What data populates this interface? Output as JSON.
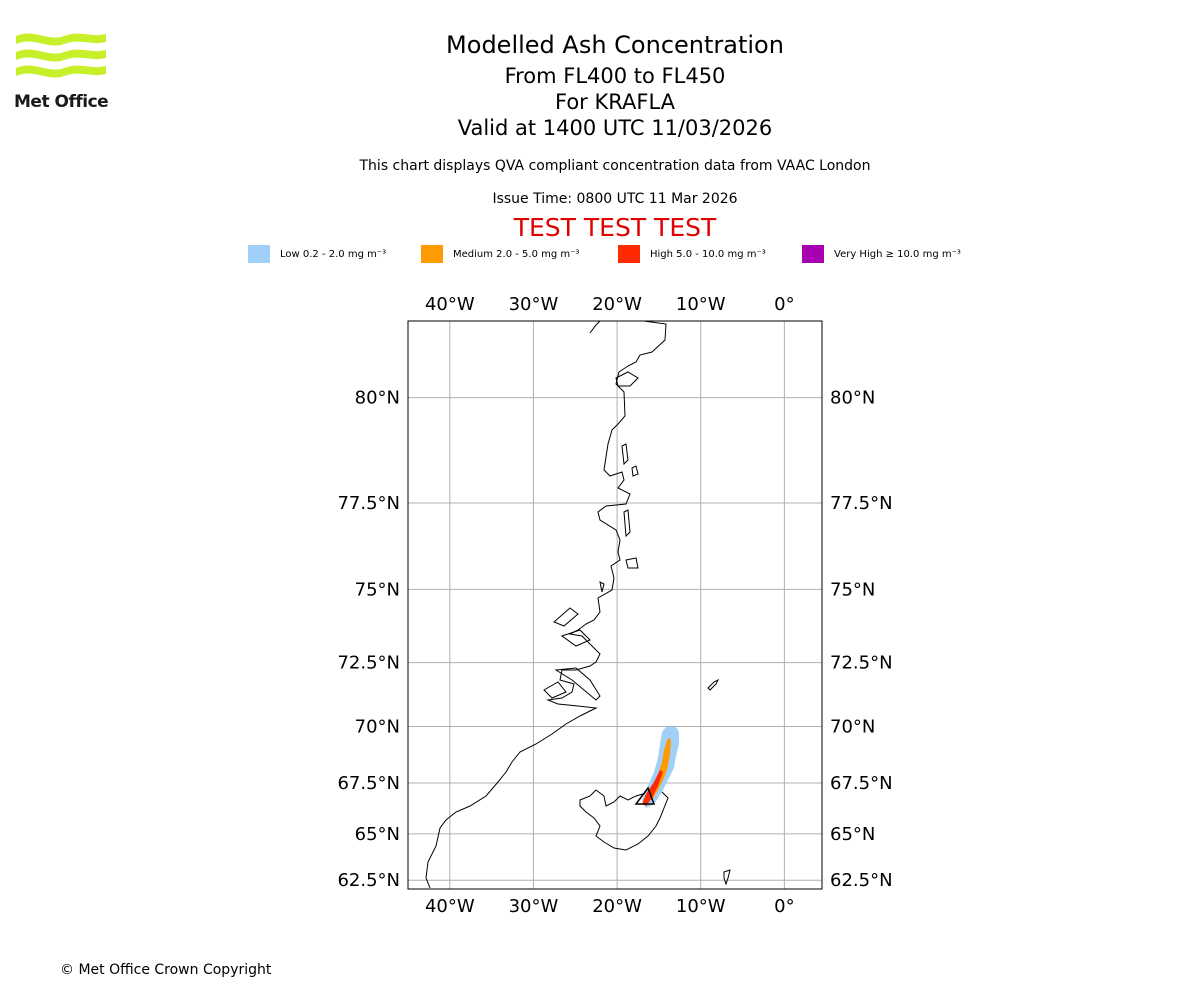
{
  "header": {
    "brand": "Met Office",
    "title": "Modelled Ash Concentration",
    "level_range": "From FL400 to FL450",
    "volcano": "For KRAFLA",
    "valid_time": "Valid at 1400 UTC 11/03/2026",
    "subtitle": "This chart displays QVA compliant concentration data from VAAC London",
    "issue_time": "Issue Time: 0800 UTC 11 Mar 2026",
    "test_banner": "TEST TEST TEST"
  },
  "legend": [
    {
      "label": "Low 0.2 - 2.0 mg m⁻³",
      "color": "#a0d0f8"
    },
    {
      "label": "Medium 2.0 - 5.0 mg m⁻³",
      "color": "#ff9a00"
    },
    {
      "label": "High 5.0 - 10.0 mg m⁻³",
      "color": "#ff2a00"
    },
    {
      "label": "Very High ≥ 10.0 mg m⁻³",
      "color": "#a800b0"
    }
  ],
  "map": {
    "lon_labels": [
      "40°W",
      "30°W",
      "20°W",
      "10°W",
      "0°"
    ],
    "lat_labels": [
      "80°N",
      "77.5°N",
      "75°N",
      "72.5°N",
      "70°N",
      "67.5°N",
      "65°N",
      "62.5°N"
    ],
    "lon_values": [
      -40,
      -30,
      -20,
      -10,
      0
    ],
    "lat_values": [
      80,
      77.5,
      75,
      72.5,
      70,
      67.5,
      65,
      62.5
    ],
    "extent": {
      "lon_min": -45,
      "lon_max": 4.5,
      "lat_min": 62,
      "lat_max": 81.5
    }
  },
  "footer": {
    "copyright": "© Met Office Crown Copyright"
  }
}
